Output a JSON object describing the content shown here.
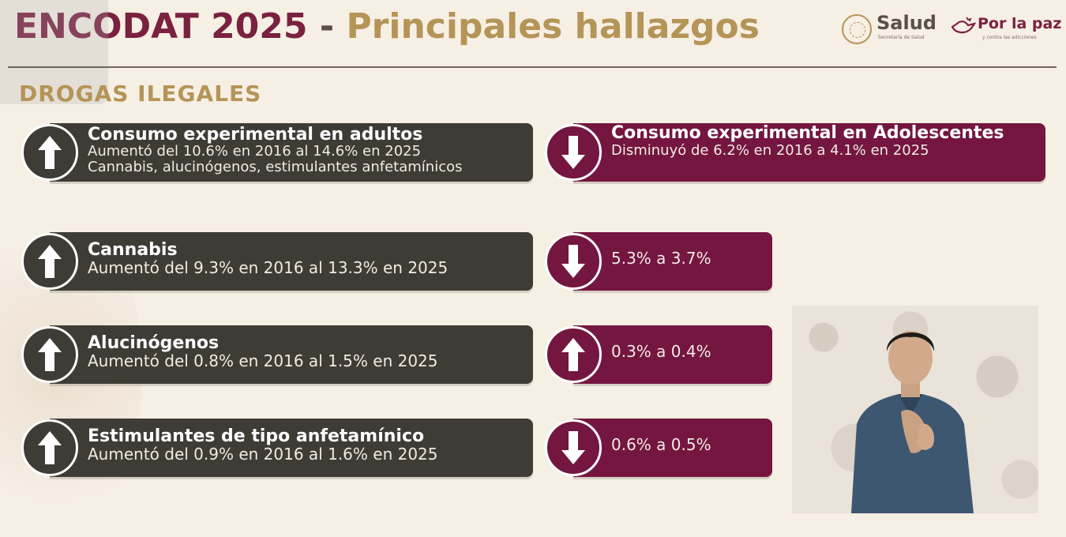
{
  "header": {
    "title_part1": "ENCODAT 2025",
    "title_sep": " - ",
    "title_part2": "Principales hallazgos",
    "logo_salud": "Salud",
    "logo_salud_sub": "Secretaría de Salud",
    "logo_paz": "Por la paz",
    "logo_paz_sub": "y contra las adicciones"
  },
  "section": {
    "title": "DROGAS ILEGALES"
  },
  "rows": [
    {
      "left": {
        "arrow": "up",
        "heading": "Consumo experimental en adultos",
        "line1": "Aumentó del 10.6% en 2016 al 14.6% en 2025",
        "line2": "Cannabis, alucinógenos, estimulantes anfetamínicos"
      },
      "right": {
        "arrow": "down",
        "heading": "Consumo experimental en Adolescentes",
        "line1": "Disminuyó de 6.2% en 2016 a 4.1% en 2025"
      }
    },
    {
      "left": {
        "arrow": "up",
        "heading": "Cannabis",
        "line1": "Aumentó del 9.3% en 2016 al 13.3% en 2025"
      },
      "right": {
        "arrow": "down",
        "line1": "5.3% a 3.7%"
      }
    },
    {
      "left": {
        "arrow": "up",
        "heading": "Alucinógenos",
        "line1": "Aumentó del 0.8% en 2016 al 1.5% en 2025"
      },
      "right": {
        "arrow": "up",
        "line1": "0.3% a 0.4%"
      }
    },
    {
      "left": {
        "arrow": "up",
        "heading": "Estimulantes de tipo anfetamínico",
        "line1": "Aumentó del 0.9% en 2016 al 1.6% en 2025"
      },
      "right": {
        "arrow": "down",
        "line1": "0.6% a 0.5%"
      }
    }
  ],
  "icons": {
    "up": "arrow-up-icon",
    "down": "arrow-down-icon"
  },
  "colors": {
    "wine": "#74163f",
    "dark": "#3f3b35",
    "gold": "#b59457"
  }
}
